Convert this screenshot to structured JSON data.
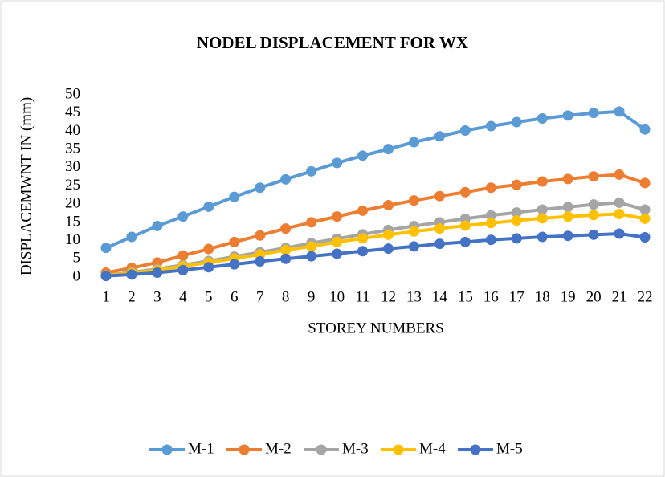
{
  "chart_data": {
    "type": "line",
    "title": "NODEL DISPLACEMENT FOR WX",
    "x_label": "STOREY NUMBERS",
    "y_label": "DISPLACEMWNT IN (mm)",
    "categories": [
      1,
      2,
      3,
      4,
      5,
      6,
      7,
      8,
      9,
      10,
      11,
      12,
      13,
      14,
      15,
      16,
      17,
      18,
      19,
      20,
      21,
      22
    ],
    "ylim": [
      0,
      50
    ],
    "yticks": [
      0,
      5,
      10,
      15,
      20,
      25,
      30,
      35,
      40,
      45,
      50
    ],
    "grid": false,
    "legend": "bottom",
    "series": [
      {
        "name": "M-1",
        "color": "#5b9bd5",
        "values": [
          8,
          11,
          14,
          16.6,
          19.3,
          22,
          24.5,
          26.8,
          29,
          31.3,
          33.3,
          35.1,
          37,
          38.6,
          40.2,
          41.4,
          42.5,
          43.5,
          44.3,
          45,
          45.4,
          40.5
        ]
      },
      {
        "name": "M-2",
        "color": "#ed7d31",
        "values": [
          1.2,
          2.5,
          4,
          5.9,
          7.7,
          9.6,
          11.4,
          13.3,
          15,
          16.6,
          18.2,
          19.7,
          21,
          22.2,
          23.3,
          24.5,
          25.3,
          26.2,
          26.9,
          27.6,
          28.1,
          25.8
        ]
      },
      {
        "name": "M-3",
        "color": "#a5a5a5",
        "values": [
          0.5,
          1.3,
          2.2,
          3.3,
          4.4,
          5.6,
          6.8,
          8,
          9.3,
          10.5,
          11.7,
          12.9,
          14,
          15,
          16,
          16.9,
          17.7,
          18.5,
          19.2,
          19.9,
          20.4,
          18.5
        ]
      },
      {
        "name": "M-4",
        "color": "#ffc000",
        "values": [
          0.4,
          1.1,
          1.9,
          3,
          4,
          5.1,
          6.2,
          7.4,
          8.4,
          9.6,
          10.6,
          11.6,
          12.5,
          13.3,
          14.1,
          14.8,
          15.5,
          16.1,
          16.6,
          17,
          17.3,
          16
        ]
      },
      {
        "name": "M-5",
        "color": "#4472c4",
        "values": [
          0.3,
          0.7,
          1.2,
          1.9,
          2.7,
          3.5,
          4.3,
          5,
          5.7,
          6.4,
          7.1,
          7.8,
          8.4,
          9.1,
          9.6,
          10.2,
          10.6,
          11,
          11.3,
          11.6,
          11.9,
          10.9
        ]
      }
    ]
  }
}
